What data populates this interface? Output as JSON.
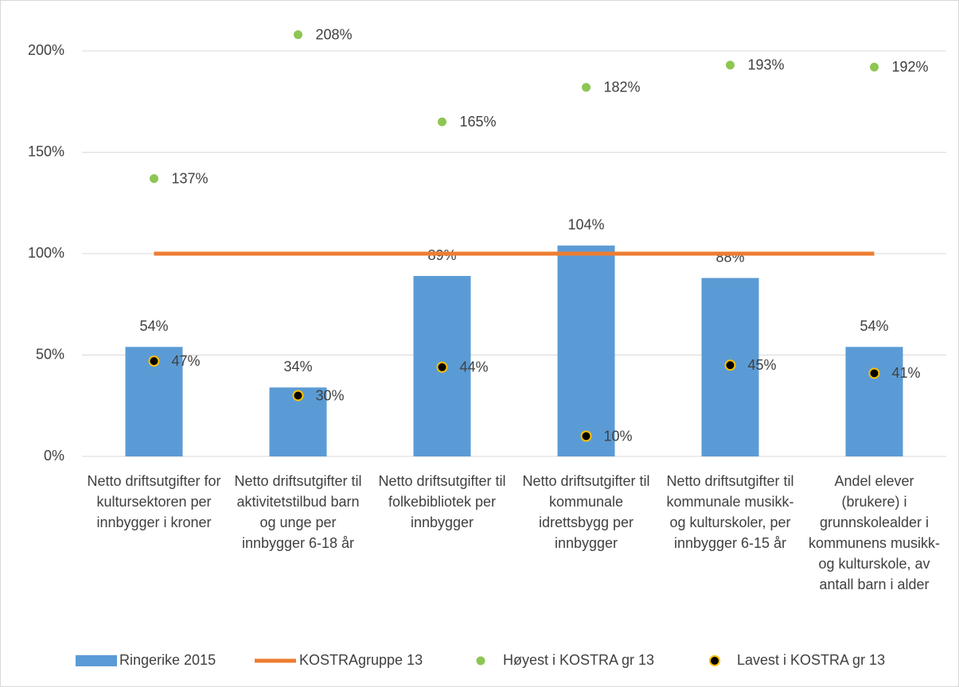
{
  "chart_data": {
    "type": "combo",
    "categories": [
      "Netto driftsutgifter for kultursektoren per innbygger i kroner",
      "Netto driftsutgifter til aktivitetstilbud barn og unge per innbygger 6-18 år",
      "Netto driftsutgifter til folkebibliotek per innbygger",
      "Netto driftsutgifter til kommunale idrettsbygg per innbygger",
      "Netto driftsutgifter til kommunale musikk- og kulturskoler, per innbygger 6-15 år",
      "Andel elever (brukere) i grunnskolealder i kommunens musikk- og kulturskole, av antall barn i alder"
    ],
    "series": [
      {
        "name": "Ringerike 2015",
        "type": "bar",
        "color": "#5b9bd5",
        "values": [
          54,
          34,
          89,
          104,
          88,
          54
        ],
        "value_labels": [
          "54%",
          "34%",
          "89%",
          "104%",
          "88%",
          "54%"
        ]
      },
      {
        "name": "KOSTRAgruppe 13",
        "type": "line",
        "color": "#ed7d31",
        "values": [
          100,
          100,
          100,
          100,
          100,
          100
        ]
      },
      {
        "name": "Høyest i KOSTRA gr 13",
        "type": "scatter",
        "color": "#8dc653",
        "values": [
          137,
          208,
          165,
          182,
          193,
          192
        ],
        "value_labels": [
          "137%",
          "208%",
          "165%",
          "182%",
          "193%",
          "192%"
        ]
      },
      {
        "name": "Lavest i KOSTRA gr 13",
        "type": "scatter",
        "color": "#000000",
        "values": [
          47,
          30,
          44,
          10,
          45,
          41
        ],
        "value_labels": [
          "47%",
          "30%",
          "44%",
          "10%",
          "45%",
          "41%"
        ]
      }
    ],
    "ylim": [
      0,
      200
    ],
    "yticks": [
      {
        "value": 0,
        "label": "0%"
      },
      {
        "value": 50,
        "label": "50%"
      },
      {
        "value": 100,
        "label": "100%"
      },
      {
        "value": 150,
        "label": "150%"
      },
      {
        "value": 200,
        "label": "200%"
      }
    ],
    "grid": true,
    "legend": "bottom"
  }
}
